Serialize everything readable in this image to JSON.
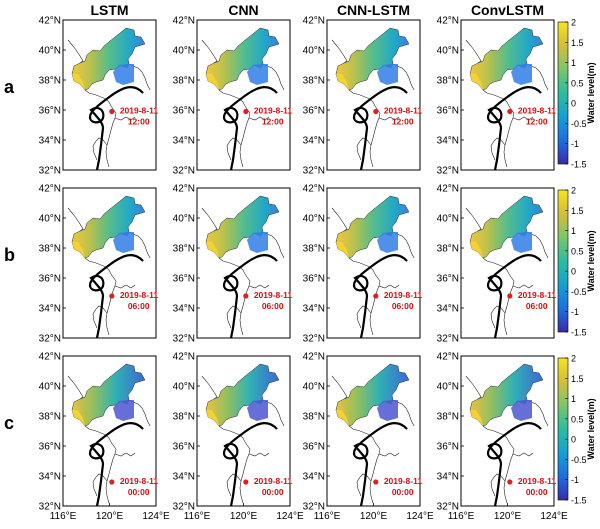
{
  "columns": [
    "LSTM",
    "CNN",
    "CNN-LSTM",
    "ConvLSTM"
  ],
  "rows": [
    {
      "label": "a",
      "date": "2019-8-11",
      "time": "12:00",
      "marker_lat": 35.9
    },
    {
      "label": "b",
      "date": "2019-8-11",
      "time": "06:00",
      "marker_lat": 34.8
    },
    {
      "label": "c",
      "date": "2019-8-11",
      "time": "00:00",
      "marker_lat": 33.6
    }
  ],
  "lat_ticks": [
    "42°N",
    "40°N",
    "38°N",
    "36°N",
    "34°N",
    "32°N"
  ],
  "lon_ticks": [
    "116°E",
    "120°E",
    "124°E"
  ],
  "colorbar": {
    "label": "Water level(m)",
    "ticks": [
      "2",
      "1.5",
      "1",
      "0.5",
      "0",
      "-0.5",
      "-1",
      "-1.5"
    ],
    "stops": [
      "#3a2ba8",
      "#1d6fe0",
      "#16a0d2",
      "#2dbd9e",
      "#7cc56b",
      "#d3bd3a",
      "#f8e320"
    ]
  },
  "colors": {
    "track": "#000000",
    "marker": "#e02020",
    "annotation": "#cc1111"
  }
}
